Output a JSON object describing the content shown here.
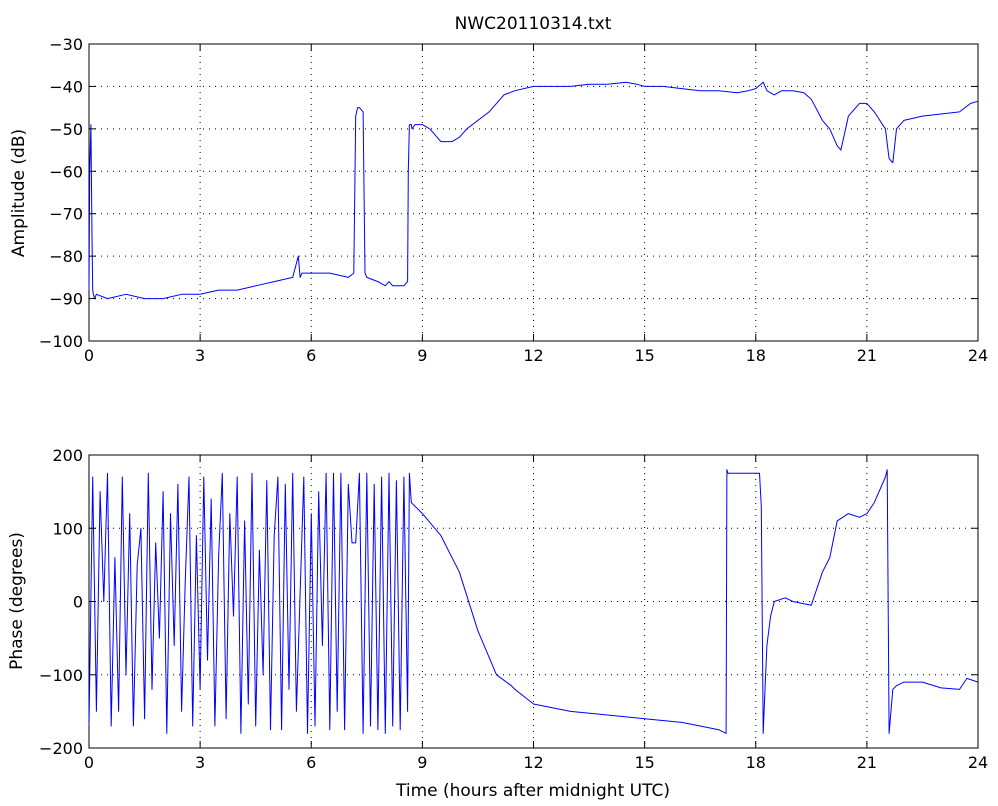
{
  "title": "NWC20110314.txt",
  "colors": {
    "series": "#0000ff",
    "axes": "#000000",
    "background": "#ffffff"
  },
  "chart_data": [
    {
      "type": "line",
      "title": "NWC20110314.txt",
      "xlabel": "",
      "ylabel": "Amplitude (dB)",
      "xlim": [
        0,
        24
      ],
      "ylim": [
        -100,
        -30
      ],
      "xticks": [
        0,
        3,
        6,
        9,
        12,
        15,
        18,
        21,
        24
      ],
      "yticks": [
        -100,
        -90,
        -80,
        -70,
        -60,
        -50,
        -40,
        -30
      ],
      "xtick_labels": [
        "0",
        "3",
        "6",
        "9",
        "12",
        "15",
        "18",
        "21",
        "24"
      ],
      "ytick_labels": [
        "−100",
        "−90",
        "−80",
        "−70",
        "−60",
        "−50",
        "−40",
        "−30"
      ],
      "grid": true,
      "series": [
        {
          "x": [
            0,
            0.02,
            0.05,
            0.08,
            0.1,
            0.12,
            0.15,
            0.2,
            0.5,
            1,
            1.5,
            2,
            2.5,
            3,
            3.5,
            4,
            4.5,
            5,
            5.5,
            5.65,
            5.7,
            5.75,
            6,
            6.5,
            7,
            7.15,
            7.2,
            7.25,
            7.3,
            7.4,
            7.45,
            7.5,
            7.8,
            8,
            8.1,
            8.2,
            8.5,
            8.6,
            8.62,
            8.65,
            8.7,
            8.72,
            8.8,
            9,
            9.2,
            9.5,
            9.8,
            10,
            10.2,
            10.5,
            10.8,
            11,
            11.2,
            11.5,
            12,
            12.5,
            13,
            13.5,
            14,
            14.5,
            14.8,
            15,
            15.5,
            16,
            16.5,
            17,
            17.5,
            17.8,
            18,
            18.2,
            18.3,
            18.5,
            18.7,
            19,
            19.3,
            19.5,
            19.8,
            20,
            20.2,
            20.3,
            20.5,
            20.8,
            21,
            21.2,
            21.5,
            21.6,
            21.7,
            21.8,
            22,
            22.5,
            23,
            23.5,
            23.8,
            24
          ],
          "values": [
            -88,
            -60,
            -49,
            -75,
            -88,
            -89,
            -90,
            -89,
            -90,
            -89,
            -90,
            -90,
            -89,
            -89,
            -88,
            -88,
            -87,
            -86,
            -85,
            -80,
            -85,
            -84,
            -84,
            -84,
            -85,
            -84,
            -47,
            -45,
            -45,
            -46,
            -84,
            -85,
            -86,
            -87,
            -86,
            -87,
            -87,
            -86,
            -60,
            -49,
            -49,
            -50,
            -49,
            -49,
            -50,
            -53,
            -53,
            -52,
            -50,
            -48,
            -46,
            -44,
            -42,
            -41,
            -40,
            -40,
            -40,
            -39.5,
            -39.5,
            -39,
            -39.5,
            -40,
            -40,
            -40.5,
            -41,
            -41,
            -41.5,
            -41,
            -40.5,
            -39,
            -41,
            -42,
            -41,
            -41,
            -41.5,
            -43,
            -48,
            -50,
            -54,
            -55,
            -47,
            -44,
            -44,
            -46,
            -50,
            -57,
            -58,
            -50,
            -48,
            -47,
            -46.5,
            -46,
            -44,
            -43.5
          ]
        }
      ]
    },
    {
      "type": "line",
      "title": "",
      "xlabel": "Time (hours after midnight UTC)",
      "ylabel": "Phase (degrees)",
      "xlim": [
        0,
        24
      ],
      "ylim": [
        -200,
        200
      ],
      "xticks": [
        0,
        3,
        6,
        9,
        12,
        15,
        18,
        21,
        24
      ],
      "yticks": [
        -200,
        -100,
        0,
        100,
        200
      ],
      "xtick_labels": [
        "0",
        "3",
        "6",
        "9",
        "12",
        "15",
        "18",
        "21",
        "24"
      ],
      "ytick_labels": [
        "−200",
        "−100",
        "0",
        "100",
        "200"
      ],
      "grid": true,
      "series": [
        {
          "x": [
            0,
            0.1,
            0.2,
            0.3,
            0.4,
            0.5,
            0.6,
            0.7,
            0.8,
            0.9,
            1.0,
            1.1,
            1.2,
            1.3,
            1.4,
            1.5,
            1.6,
            1.7,
            1.8,
            1.9,
            2.0,
            2.1,
            2.2,
            2.3,
            2.4,
            2.5,
            2.6,
            2.7,
            2.8,
            2.9,
            3.0,
            3.1,
            3.2,
            3.3,
            3.4,
            3.5,
            3.6,
            3.7,
            3.8,
            3.9,
            4.0,
            4.1,
            4.2,
            4.3,
            4.4,
            4.5,
            4.6,
            4.7,
            4.8,
            4.9,
            5.0,
            5.1,
            5.2,
            5.3,
            5.4,
            5.5,
            5.6,
            5.7,
            5.8,
            5.9,
            6.0,
            6.1,
            6.2,
            6.3,
            6.4,
            6.5,
            6.6,
            6.7,
            6.8,
            6.9,
            7.0,
            7.1,
            7.2,
            7.3,
            7.4,
            7.5,
            7.6,
            7.7,
            7.8,
            7.9,
            8.0,
            8.1,
            8.2,
            8.3,
            8.4,
            8.5,
            8.6,
            8.65,
            8.7,
            9,
            9.5,
            10,
            10.5,
            11,
            11.4,
            11.5,
            12,
            13,
            14,
            15,
            16,
            16.5,
            17,
            17.2,
            17.22,
            17.25,
            17.5,
            18,
            18.1,
            18.15,
            18.2,
            18.25,
            18.3,
            18.4,
            18.5,
            18.8,
            19,
            19.5,
            19.8,
            20,
            20.2,
            20.5,
            20.8,
            21,
            21.2,
            21.5,
            21.55,
            21.6,
            21.7,
            21.8,
            22,
            22.5,
            23,
            23.5,
            23.7,
            24
          ],
          "values": [
            -170,
            170,
            -150,
            150,
            0,
            175,
            -170,
            60,
            -150,
            170,
            -100,
            120,
            -170,
            50,
            100,
            -160,
            175,
            -120,
            80,
            -50,
            150,
            -180,
            120,
            -60,
            160,
            -150,
            30,
            170,
            -170,
            90,
            -120,
            170,
            -80,
            140,
            -170,
            60,
            175,
            -160,
            120,
            -20,
            170,
            -180,
            110,
            -140,
            175,
            -170,
            70,
            -100,
            165,
            -175,
            90,
            170,
            -175,
            160,
            -120,
            175,
            -150,
            10,
            170,
            -180,
            120,
            -170,
            150,
            -60,
            175,
            -175,
            175,
            -150,
            175,
            -175,
            160,
            80,
            80,
            175,
            -180,
            175,
            -170,
            160,
            -175,
            170,
            -180,
            175,
            -170,
            165,
            -175,
            170,
            -150,
            175,
            135,
            120,
            90,
            40,
            -40,
            -100,
            -115,
            -120,
            -140,
            -150,
            -155,
            -160,
            -165,
            -170,
            -175,
            -180,
            180,
            175,
            175,
            175,
            175,
            130,
            -180,
            -120,
            -60,
            -20,
            0,
            5,
            0,
            -5,
            40,
            60,
            110,
            120,
            115,
            120,
            135,
            170,
            180,
            -180,
            -120,
            -115,
            -110,
            -110,
            -118,
            -120,
            -105,
            -110
          ]
        }
      ]
    }
  ]
}
